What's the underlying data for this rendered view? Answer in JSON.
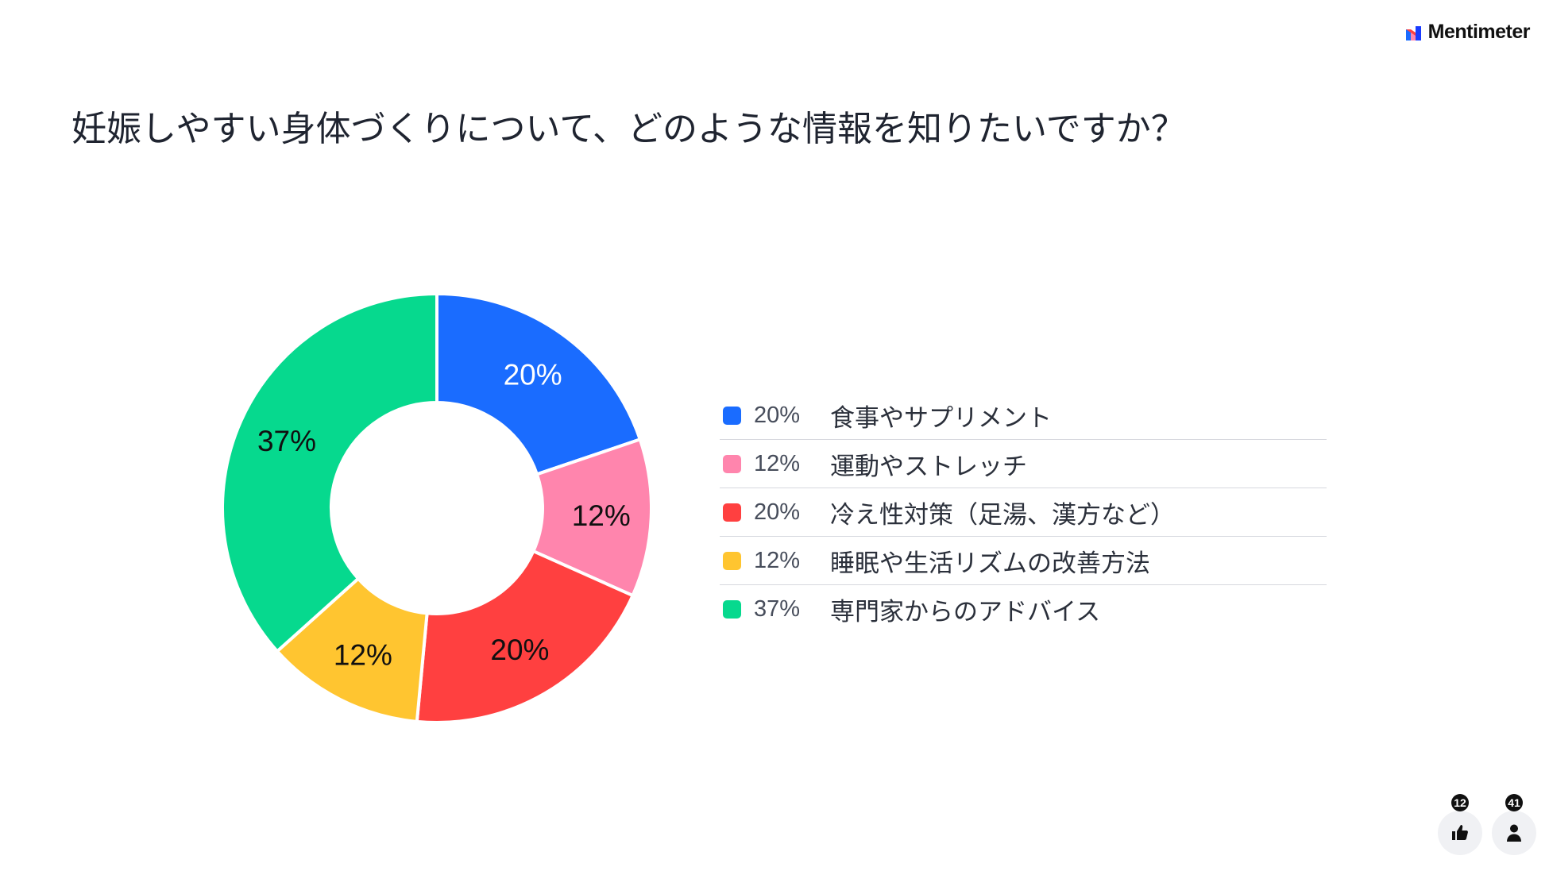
{
  "brand": {
    "name": "Mentimeter",
    "logo_icon": "mentimeter-logo-icon"
  },
  "question": {
    "title": "妊娠しやすい身体づくりについて、どのような情報を知りたいですか？"
  },
  "chart_data": {
    "type": "pie",
    "variant": "donut",
    "title": "妊娠しやすい身体づくりについて、どのような情報を知りたいですか？",
    "categories": [
      "食事やサプリメント",
      "運動やストレッチ",
      "冷え性対策（足湯、漢方など）",
      "睡眠や生活リズムの改善方法",
      "専門家からのアドバイス"
    ],
    "values": [
      20,
      12,
      20,
      12,
      37
    ],
    "value_labels": [
      "20%",
      "12%",
      "20%",
      "12%",
      "37%"
    ],
    "colors": [
      "#1a6cff",
      "#ff85ad",
      "#ff4040",
      "#ffc530",
      "#06d98e"
    ],
    "label_colors": [
      "#ffffff",
      "#101010",
      "#101010",
      "#101010",
      "#101010"
    ],
    "unit": "%",
    "legend_position": "right",
    "start_angle": "top, clockwise"
  },
  "reactions": [
    {
      "icon": "thumbs-up-icon",
      "count": "12"
    },
    {
      "icon": "person-icon",
      "count": "41"
    }
  ]
}
